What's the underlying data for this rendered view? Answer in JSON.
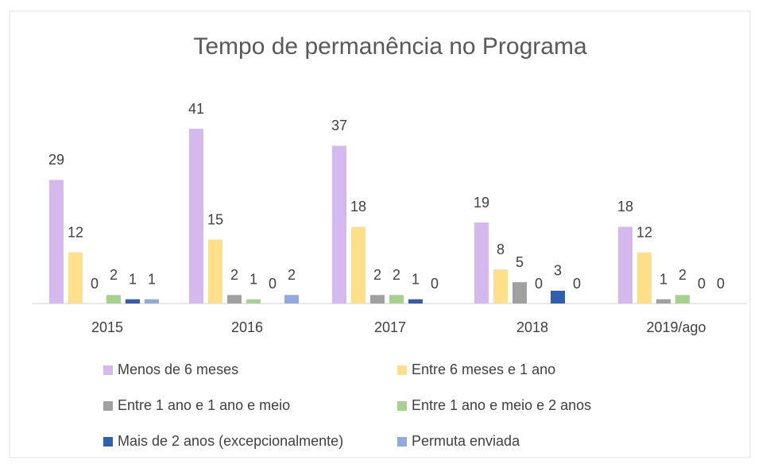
{
  "chart_data": {
    "type": "bar",
    "title": "Tempo de permanência no Programa",
    "categories": [
      "2015",
      "2016",
      "2017",
      "2018",
      "2019/ago"
    ],
    "series": [
      {
        "name": "Menos de 6 meses",
        "color": "#d5b8ee",
        "values": [
          29,
          41,
          37,
          19,
          18
        ]
      },
      {
        "name": "Entre 6 meses e 1 ano",
        "color": "#ffe08a",
        "values": [
          12,
          15,
          18,
          8,
          12
        ]
      },
      {
        "name": "Entre 1 ano e 1 ano e meio",
        "color": "#a0a0a0",
        "values": [
          0,
          2,
          2,
          5,
          1
        ]
      },
      {
        "name": "Entre 1 ano e meio e 2 anos",
        "color": "#a9d18e",
        "values": [
          2,
          1,
          2,
          0,
          2
        ]
      },
      {
        "name": "Mais de 2 anos (excepcionalmente)",
        "color": "#2f5fae",
        "values": [
          1,
          0,
          1,
          3,
          0
        ]
      },
      {
        "name": "Permuta enviada",
        "color": "#8faadc",
        "values": [
          1,
          2,
          0,
          0,
          0
        ]
      }
    ]
  }
}
